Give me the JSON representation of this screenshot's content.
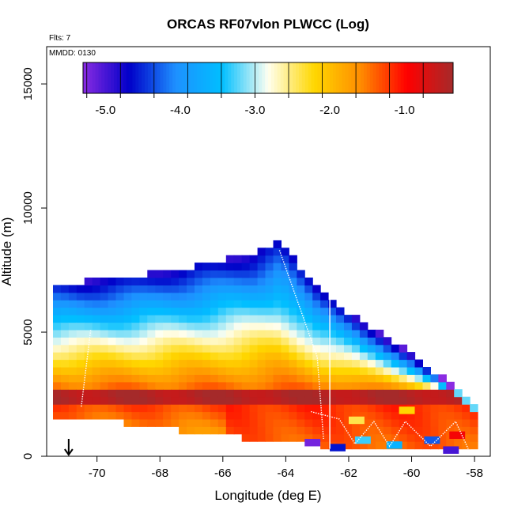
{
  "chart_data": {
    "type": "heatmap",
    "title": "ORCAS RF07vlon PLWCC (Log)",
    "flights_label": "Flts: 7",
    "date_label": "MMDD: 0130",
    "xlabel": "Longitude (deg E)",
    "ylabel": "Altitude (m)",
    "xlim": [
      -71.6,
      -57.5
    ],
    "ylim": [
      0,
      16500
    ],
    "xticks": [
      -70,
      -68,
      -66,
      -64,
      -62,
      -60,
      -58
    ],
    "yticks": [
      0,
      5000,
      10000,
      15000
    ],
    "colorbar": {
      "range": [
        -5.3,
        -0.35
      ],
      "ticks": [
        -5.0,
        -4.0,
        -3.0,
        -2.0,
        -1.0
      ],
      "tick_labels": [
        "-5.0",
        "-4.0",
        "-3.0",
        "-2.0",
        "-1.0"
      ],
      "colors": [
        "#8a2be2",
        "#0000c8",
        "#1e90ff",
        "#00bfff",
        "#fffff0",
        "#ffd700",
        "#ff8c00",
        "#ff0000",
        "#a52a2a"
      ]
    },
    "field": {
      "description": "log10 PLWCC vs longitude and altitude",
      "lon_step": 0.25,
      "alt_step": 300,
      "top_profile": [
        [
          -70.5,
          6900
        ],
        [
          -69.0,
          7100
        ],
        [
          -67.0,
          7500
        ],
        [
          -65.0,
          8000
        ],
        [
          -64.2,
          8500
        ],
        [
          -63.0,
          6600
        ],
        [
          -61.5,
          5200
        ],
        [
          -60.0,
          4000
        ],
        [
          -58.0,
          2000
        ]
      ],
      "bottom_profile": [
        [
          -71.3,
          1800
        ],
        [
          -70.5,
          1700
        ],
        [
          -68.0,
          1300
        ],
        [
          -66.0,
          1000
        ],
        [
          -64.0,
          700
        ],
        [
          -62.0,
          500
        ],
        [
          -60.0,
          300
        ],
        [
          -58.0,
          300
        ]
      ],
      "max_band_altitude": 2500
    },
    "flight_track_color": "#ffffff",
    "marker": {
      "type": "down-arrow",
      "lon": -70.9,
      "label": ""
    }
  }
}
